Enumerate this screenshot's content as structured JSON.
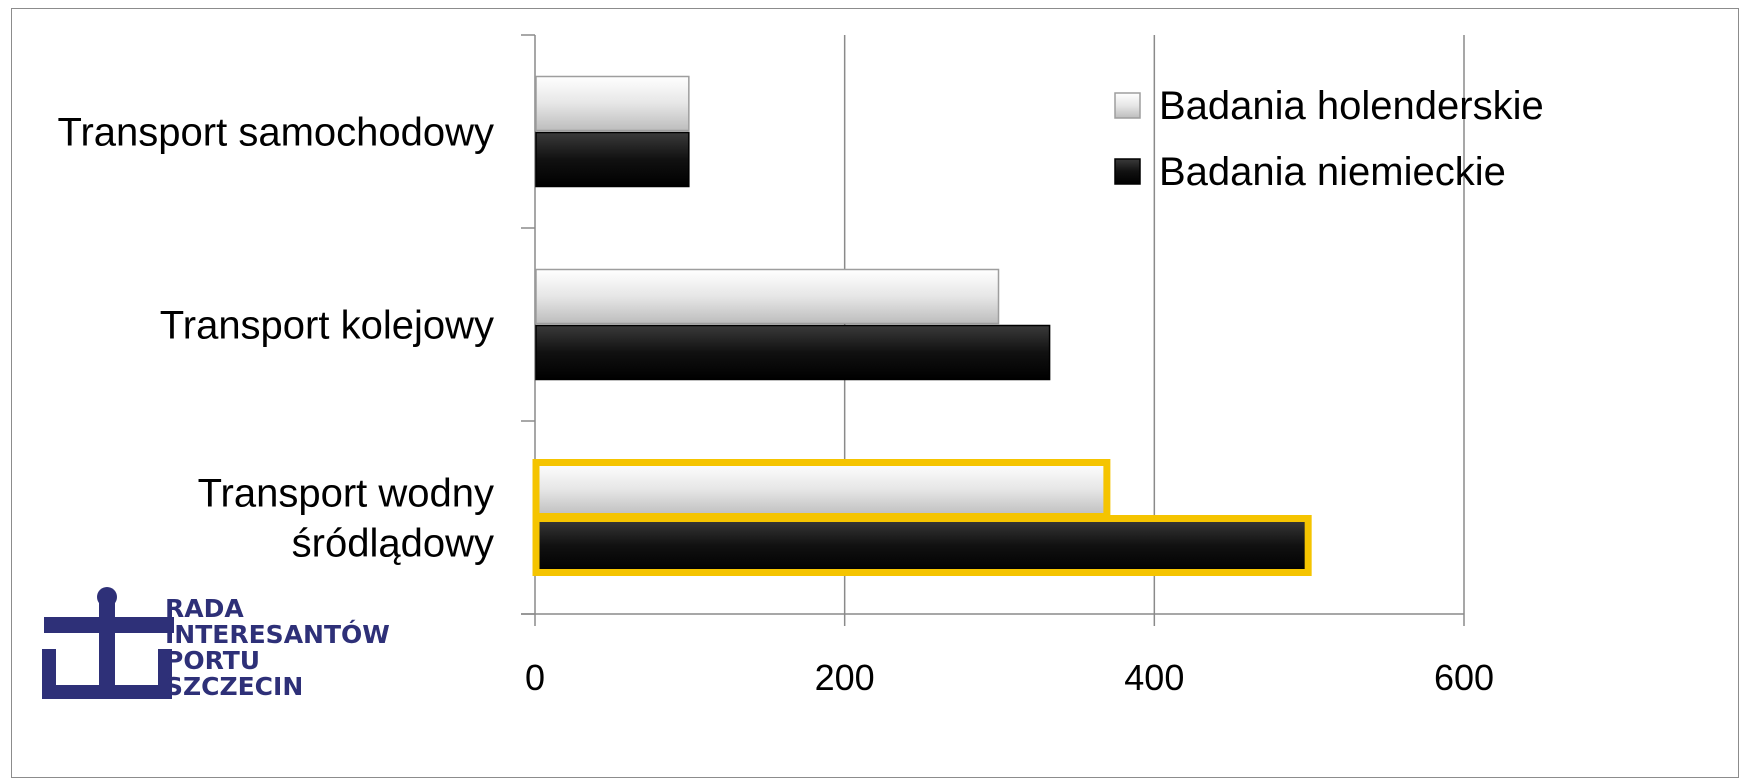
{
  "chart_data": {
    "type": "bar",
    "orientation": "horizontal",
    "categories": [
      "Transport samochodowy",
      "Transport kolejowy",
      "Transport wodny śródlądowy"
    ],
    "series": [
      {
        "name": "Badania holenderskie",
        "values": [
          100,
          300,
          370
        ],
        "color": "#e6e6e6"
      },
      {
        "name": "Badania niemieckie",
        "values": [
          100,
          333,
          500
        ],
        "color": "#111111"
      }
    ],
    "highlight_category": "Transport wodny śródlądowy",
    "highlight_color": "#f5c400",
    "xlim": [
      0,
      600
    ],
    "xticks": [
      "0",
      "200",
      "400",
      "600"
    ],
    "grid": true,
    "legend_position": "top-right"
  },
  "logo": {
    "lines": [
      "RADA",
      "INTERESANTÓW",
      "PORTU",
      "SZCZECIN"
    ],
    "color": "#2e3078",
    "icon": "anchor-icon"
  }
}
